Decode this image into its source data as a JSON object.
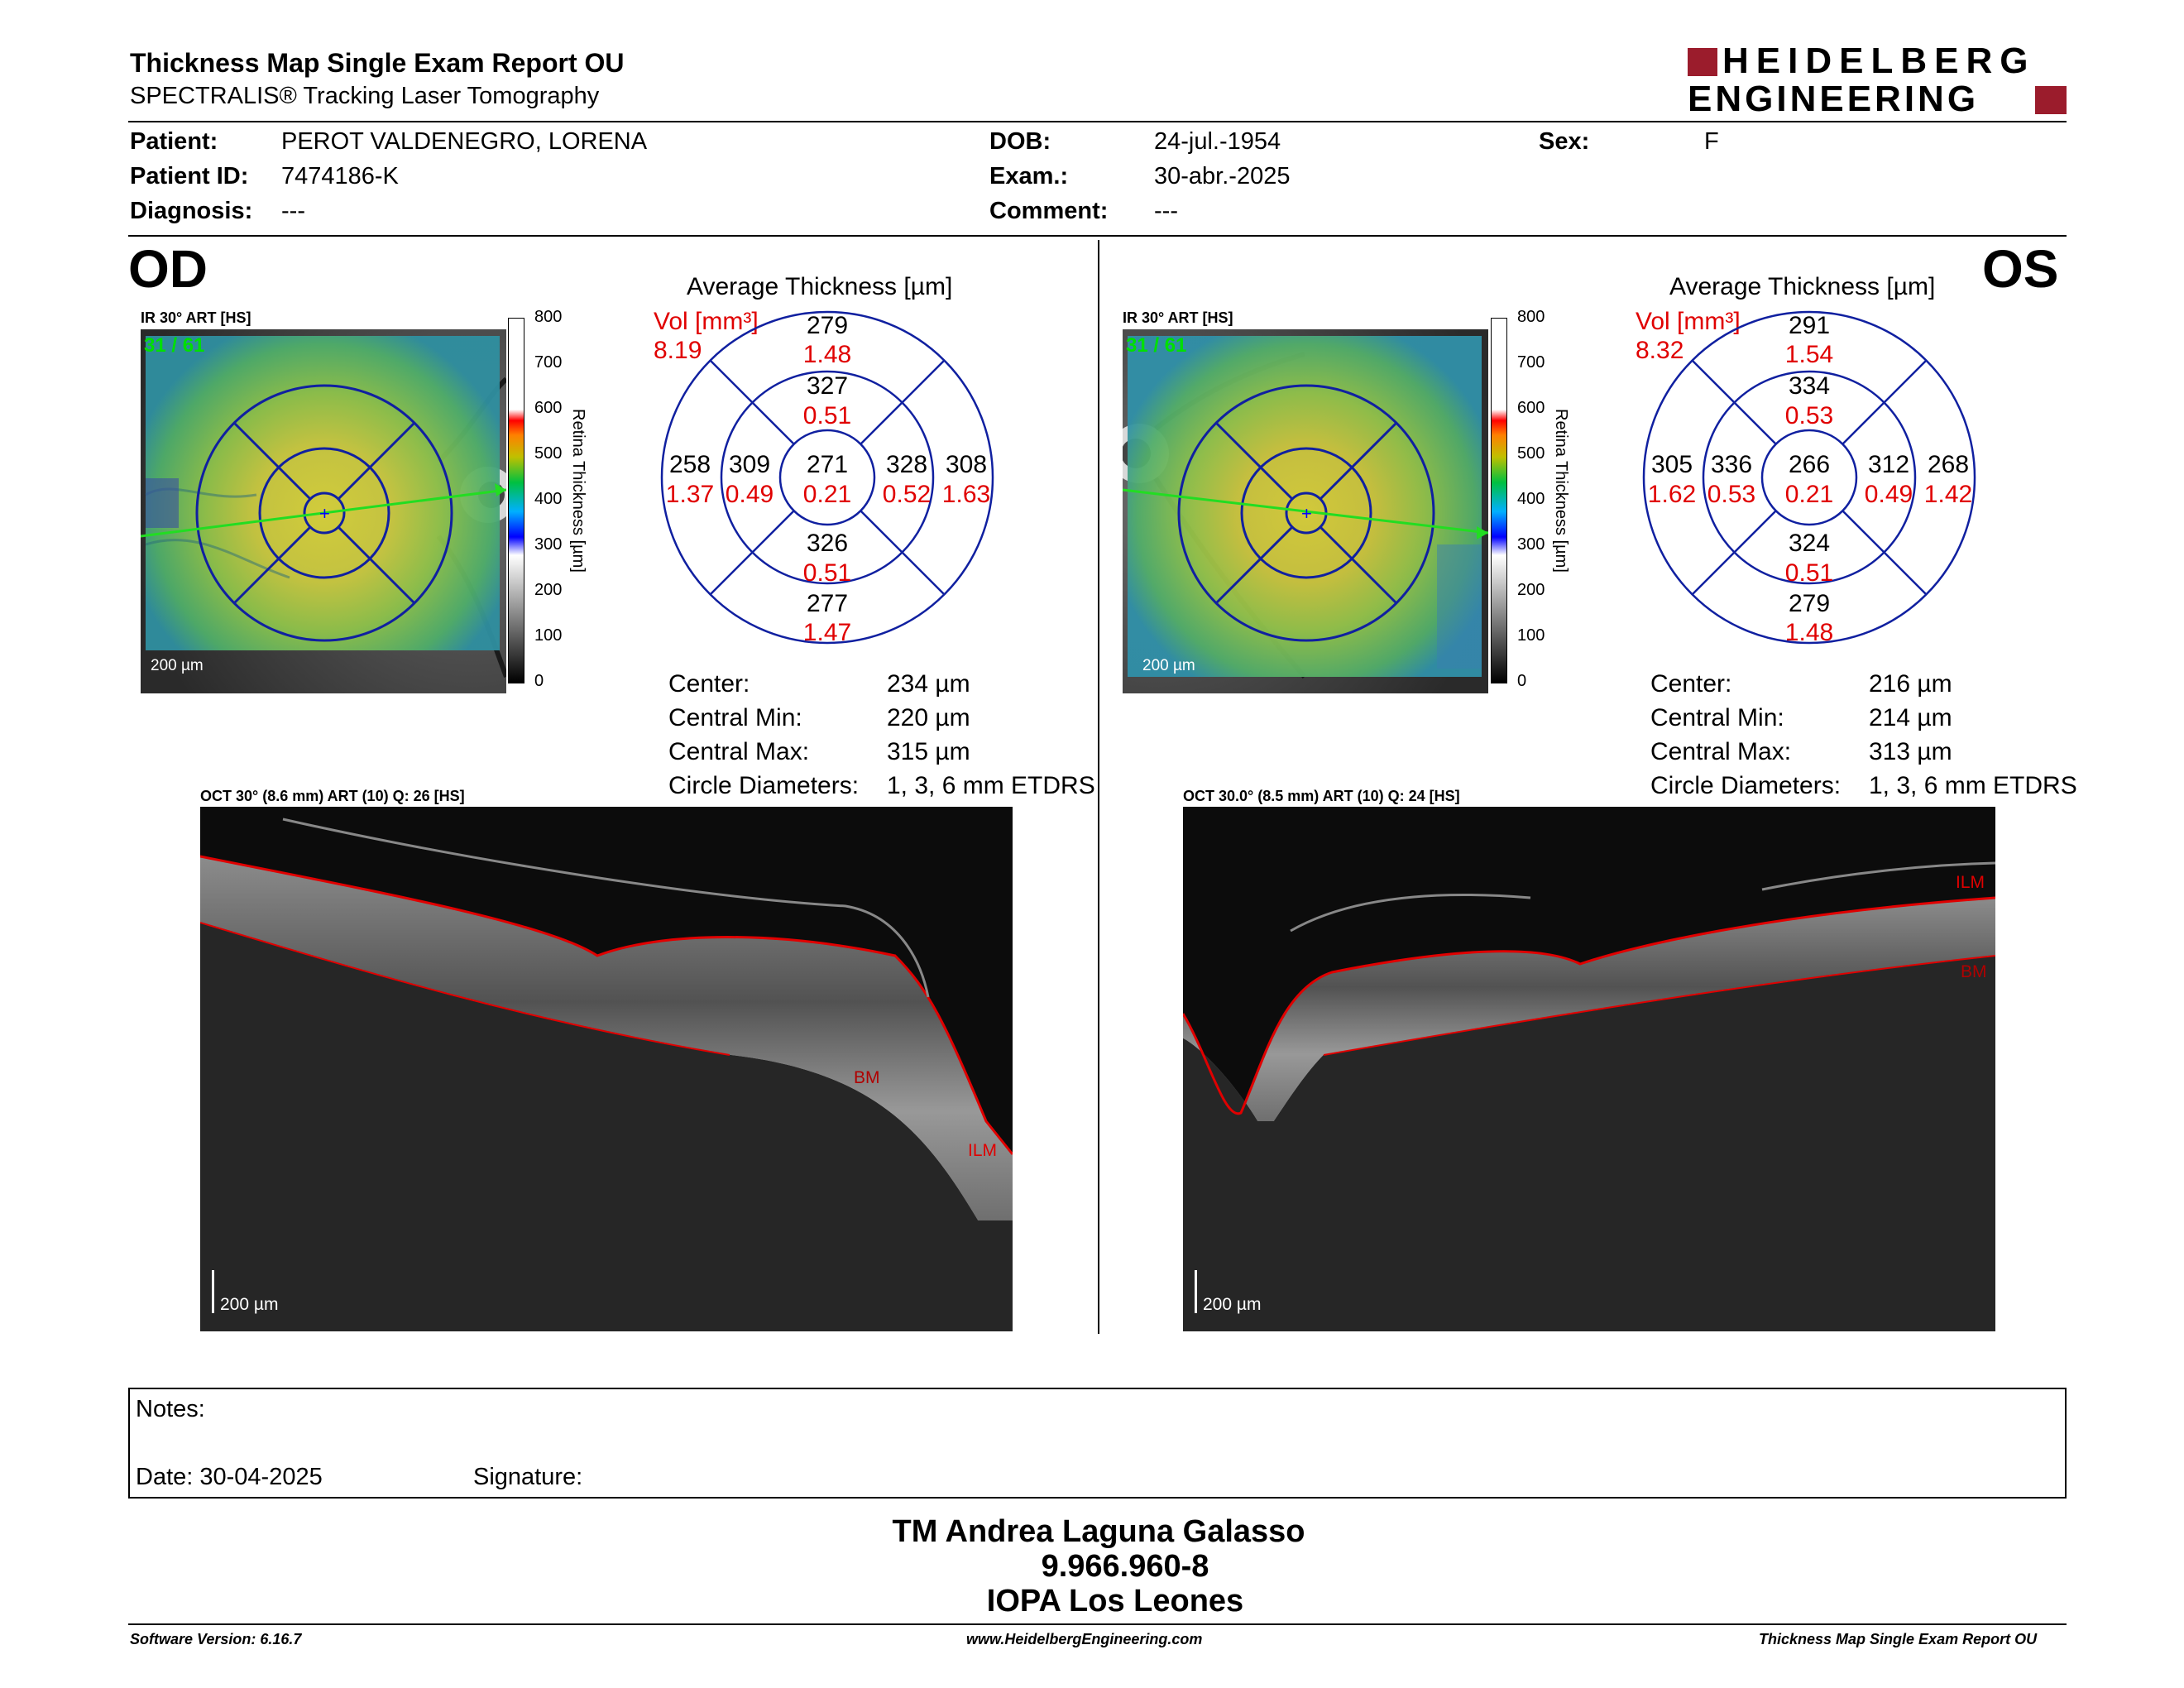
{
  "header": {
    "title": "Thickness Map Single Exam Report OU",
    "subtitle": "SPECTRALIS® Tracking Laser Tomography",
    "logo_line1": "HEIDELBERG",
    "logo_line2": "ENGINEERING",
    "brand_color": "#9b1c2c"
  },
  "patient": {
    "patient_label": "Patient:",
    "patient_value": "PEROT VALDENEGRO, LORENA",
    "id_label": "Patient ID:",
    "id_value": "7474186-K",
    "diagnosis_label": "Diagnosis:",
    "diagnosis_value": "---",
    "dob_label": "DOB:",
    "dob_value": "24-jul.-1954",
    "exam_label": "Exam.:",
    "exam_value": "30-abr.-2025",
    "comment_label": "Comment:",
    "comment_value": "---",
    "sex_label": "Sex:",
    "sex_value": "F"
  },
  "colorbar": {
    "ticks": [
      "800",
      "700",
      "600",
      "500",
      "400",
      "300",
      "200",
      "100",
      "0"
    ],
    "label": "Retina Thickness [µm]"
  },
  "od": {
    "eye": "OD",
    "ir_label": "IR 30° ART [HS]",
    "frame_counter": "31 / 61",
    "ir_scale": "200 µm",
    "etdrs_title": "Average Thickness [µm]",
    "vol_label": "Vol [mm³]",
    "vol_total": "8.19",
    "sectors": {
      "outer_sup": {
        "t": "279",
        "v": "1.48"
      },
      "inner_sup": {
        "t": "327",
        "v": "0.51"
      },
      "outer_temp": {
        "t": "258",
        "v": "1.37"
      },
      "inner_temp": {
        "t": "309",
        "v": "0.49"
      },
      "center": {
        "t": "271",
        "v": "0.21"
      },
      "inner_nas": {
        "t": "328",
        "v": "0.52"
      },
      "outer_nas": {
        "t": "308",
        "v": "1.63"
      },
      "inner_inf": {
        "t": "326",
        "v": "0.51"
      },
      "outer_inf": {
        "t": "277",
        "v": "1.47"
      }
    },
    "stats": {
      "center_label": "Center:",
      "center_value": "234 µm",
      "min_label": "Central Min:",
      "min_value": "220 µm",
      "max_label": "Central Max:",
      "max_value": "315 µm",
      "diam_label": "Circle Diameters:",
      "diam_value": "1, 3, 6 mm ETDRS"
    },
    "oct_label": "OCT 30° (8.6 mm) ART (10) Q: 26 [HS]",
    "oct_scale": "200 µm",
    "seg_bm": "BM",
    "seg_ilm": "ILM"
  },
  "os": {
    "eye": "OS",
    "ir_label": "IR 30° ART [HS]",
    "frame_counter": "31 / 61",
    "ir_scale": "200 µm",
    "etdrs_title": "Average Thickness [µm]",
    "vol_label": "Vol [mm³]",
    "vol_total": "8.32",
    "sectors": {
      "outer_sup": {
        "t": "291",
        "v": "1.54"
      },
      "inner_sup": {
        "t": "334",
        "v": "0.53"
      },
      "outer_temp": {
        "t": "268",
        "v": "1.42"
      },
      "inner_temp": {
        "t": "312",
        "v": "0.49"
      },
      "center": {
        "t": "266",
        "v": "0.21"
      },
      "inner_nas": {
        "t": "336",
        "v": "0.53"
      },
      "outer_nas": {
        "t": "305",
        "v": "1.62"
      },
      "inner_inf": {
        "t": "324",
        "v": "0.51"
      },
      "outer_inf": {
        "t": "279",
        "v": "1.48"
      }
    },
    "stats": {
      "center_label": "Center:",
      "center_value": "216 µm",
      "min_label": "Central Min:",
      "min_value": "214 µm",
      "max_label": "Central Max:",
      "max_value": "313 µm",
      "diam_label": "Circle Diameters:",
      "diam_value": "1, 3, 6 mm ETDRS"
    },
    "oct_label": "OCT 30.0° (8.5 mm) ART (10) Q: 24 [HS]",
    "oct_scale": "200 µm",
    "seg_bm": "BM",
    "seg_ilm": "ILM"
  },
  "notes": {
    "notes_label": "Notes:",
    "date_label": "Date: 30-04-2025",
    "signature_label": "Signature:"
  },
  "signature_block": {
    "name": "TM Andrea Laguna Galasso",
    "rut": "9.966.960-8",
    "org": "IOPA Los Leones"
  },
  "footer": {
    "software": "Software Version: 6.16.7",
    "url": "www.HeidelbergEngineering.com",
    "report": "Thickness Map Single Exam Report OU"
  }
}
